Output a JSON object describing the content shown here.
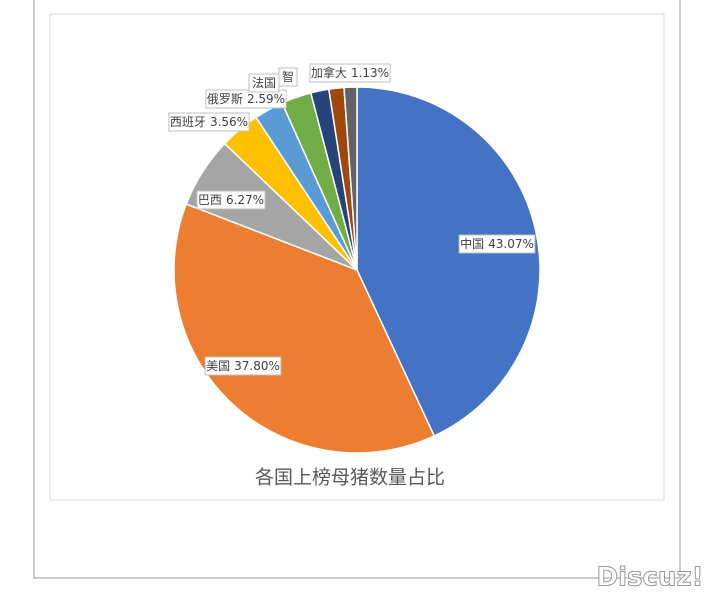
{
  "chart_data": {
    "type": "pie",
    "title": "各国上榜母猪数量占比",
    "categories": [
      "中国",
      "美国",
      "巴西",
      "西班牙",
      "俄罗斯",
      "法国",
      "智",
      null,
      "加拿大"
    ],
    "values": [
      43.07,
      37.8,
      6.27,
      3.56,
      2.59,
      2.65,
      1.6,
      1.33,
      1.13
    ],
    "value_labels": [
      "43.07%",
      "37.80%",
      "6.27%",
      "3.56%",
      "2.59%",
      null,
      null,
      null,
      "1.13%"
    ],
    "colors": [
      "#4472c4",
      "#ed7d31",
      "#a5a5a5",
      "#ffc000",
      "#5b9bd5",
      "#70ad47",
      "#264478",
      "#9e480e",
      "#636363"
    ]
  },
  "watermark": "Discuz!"
}
